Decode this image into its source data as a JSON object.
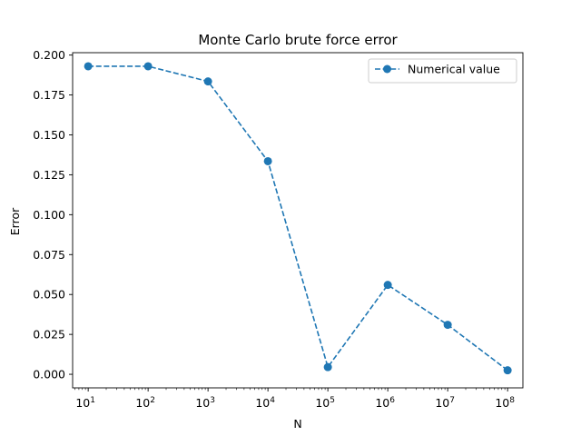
{
  "chart_data": {
    "type": "line",
    "title": "Monte Carlo brute force error",
    "xlabel": "N",
    "ylabel": "Error",
    "xscale": "log",
    "xlim": [
      5.5,
      180000000
    ],
    "ylim": [
      -0.0085,
      0.2015
    ],
    "x": [
      10,
      100,
      1000,
      10000,
      100000,
      1000000,
      10000000,
      100000000
    ],
    "x_tick_base": "10",
    "x_tick_exponents": [
      "1",
      "2",
      "3",
      "4",
      "5",
      "6",
      "7",
      "8"
    ],
    "y_ticks": [
      0.0,
      0.025,
      0.05,
      0.075,
      0.1,
      0.125,
      0.15,
      0.175,
      0.2
    ],
    "y_tick_labels": [
      "0.000",
      "0.025",
      "0.050",
      "0.075",
      "0.100",
      "0.125",
      "0.150",
      "0.175",
      "0.200"
    ],
    "series": [
      {
        "name": "Numerical value",
        "values": [
          0.193,
          0.193,
          0.1835,
          0.1335,
          0.0045,
          0.056,
          0.031,
          0.0025
        ],
        "color": "#1f77b4",
        "line_style": "dashed",
        "marker": "circle"
      }
    ],
    "legend_position": "top-right",
    "grid": false
  }
}
